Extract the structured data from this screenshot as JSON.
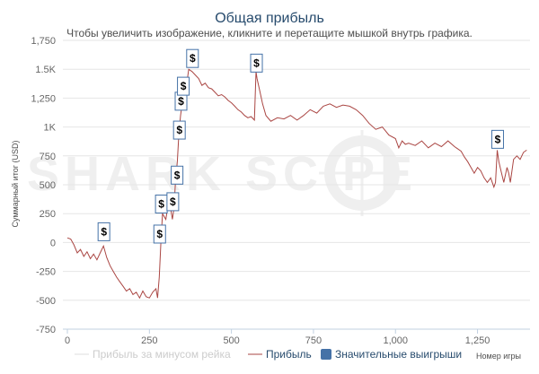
{
  "title": "Общая прибыль",
  "subtitle": "Чтобы увеличить изображение, кликните и перетащите мышкой внутрь графика.",
  "watermark": "SHARK SC   PE",
  "colors": {
    "title": "#274b6d",
    "profit_line": "#aa4643",
    "minus_rake_line": "#dddddd",
    "flag_border": "#4572a7",
    "legend_box": "#4572a7",
    "grid": "#e6e6e6",
    "axis": "#c0d0e0"
  },
  "chart_data": {
    "type": "line",
    "xlabel": "Номер игры",
    "ylabel": "Суммарный итог (USD)",
    "xlim": [
      0,
      1410
    ],
    "ylim": [
      -750,
      1750
    ],
    "x_ticks": [
      0,
      250,
      500,
      750,
      1000,
      1250
    ],
    "x_tick_labels": [
      "0",
      "250",
      "500",
      "750",
      "1,000",
      "1,250"
    ],
    "y_ticks": [
      -750,
      -500,
      -250,
      0,
      250,
      500,
      750,
      1000,
      1250,
      1500,
      1750
    ],
    "y_tick_labels": [
      "-750",
      "-500",
      "-250",
      "0",
      "250",
      "500",
      "750",
      "1K",
      "1,250",
      "1.5K",
      "1,750"
    ],
    "grid": true,
    "legend_position": "bottom",
    "series": [
      {
        "name": "Прибыль",
        "x": [
          0,
          10,
          20,
          30,
          40,
          50,
          60,
          70,
          80,
          90,
          100,
          110,
          120,
          130,
          140,
          150,
          160,
          170,
          180,
          190,
          200,
          210,
          220,
          230,
          240,
          250,
          260,
          270,
          275,
          280,
          285,
          290,
          300,
          310,
          320,
          325,
          330,
          335,
          340,
          345,
          350,
          355,
          360,
          365,
          370,
          380,
          390,
          400,
          410,
          420,
          430,
          440,
          450,
          460,
          470,
          480,
          490,
          500,
          510,
          520,
          530,
          540,
          550,
          560,
          570,
          575,
          578,
          585,
          595,
          605,
          620,
          640,
          660,
          680,
          700,
          720,
          740,
          760,
          780,
          800,
          820,
          840,
          860,
          880,
          900,
          920,
          940,
          960,
          980,
          1000,
          1010,
          1020,
          1030,
          1040,
          1060,
          1080,
          1100,
          1120,
          1140,
          1160,
          1180,
          1200,
          1210,
          1220,
          1230,
          1240,
          1250,
          1260,
          1270,
          1280,
          1290,
          1300,
          1305,
          1310,
          1315,
          1320,
          1330,
          1340,
          1345,
          1350,
          1360,
          1370,
          1380,
          1390,
          1400
        ],
        "values": [
          40,
          30,
          -20,
          -90,
          -60,
          -120,
          -80,
          -140,
          -100,
          -150,
          -90,
          -30,
          -130,
          -200,
          -250,
          -300,
          -340,
          -380,
          -420,
          -400,
          -450,
          -430,
          -480,
          -420,
          -470,
          -480,
          -430,
          -400,
          -480,
          -300,
          0,
          250,
          200,
          380,
          200,
          300,
          550,
          700,
          950,
          1100,
          1200,
          1300,
          1250,
          1400,
          1500,
          1480,
          1450,
          1420,
          1360,
          1380,
          1340,
          1330,
          1300,
          1270,
          1280,
          1260,
          1230,
          1210,
          1180,
          1150,
          1130,
          1100,
          1080,
          1090,
          1060,
          1480,
          1420,
          1330,
          1200,
          1100,
          1050,
          1080,
          1070,
          1100,
          1060,
          1100,
          1150,
          1120,
          1180,
          1200,
          1170,
          1190,
          1180,
          1150,
          1100,
          1030,
          980,
          1000,
          930,
          900,
          820,
          880,
          850,
          860,
          840,
          880,
          820,
          860,
          830,
          880,
          830,
          790,
          740,
          700,
          650,
          600,
          650,
          620,
          560,
          520,
          560,
          480,
          520,
          800,
          700,
          640,
          520,
          650,
          600,
          520,
          720,
          750,
          720,
          780,
          800
        ]
      },
      {
        "name": "Прибыль за минусом рейка",
        "values": []
      },
      {
        "name": "Значительные выигрыши",
        "flags": [
          {
            "x": 110,
            "y": 0,
            "label": "$"
          },
          {
            "x": 280,
            "y": -20,
            "label": "$"
          },
          {
            "x": 285,
            "y": 240,
            "label": "$"
          },
          {
            "x": 320,
            "y": 260,
            "label": "$"
          },
          {
            "x": 333,
            "y": 490,
            "label": "$"
          },
          {
            "x": 340,
            "y": 880,
            "label": "$"
          },
          {
            "x": 345,
            "y": 1130,
            "label": "$"
          },
          {
            "x": 352,
            "y": 1260,
            "label": "$"
          },
          {
            "x": 380,
            "y": 1500,
            "label": "$"
          },
          {
            "x": 575,
            "y": 1460,
            "label": "$"
          },
          {
            "x": 1310,
            "y": 800,
            "label": "$"
          }
        ]
      }
    ]
  },
  "legend": {
    "minus_rake": "Прибыль за минусом рейка",
    "profit": "Прибыль",
    "big_wins": "Значительные выигрыши"
  }
}
